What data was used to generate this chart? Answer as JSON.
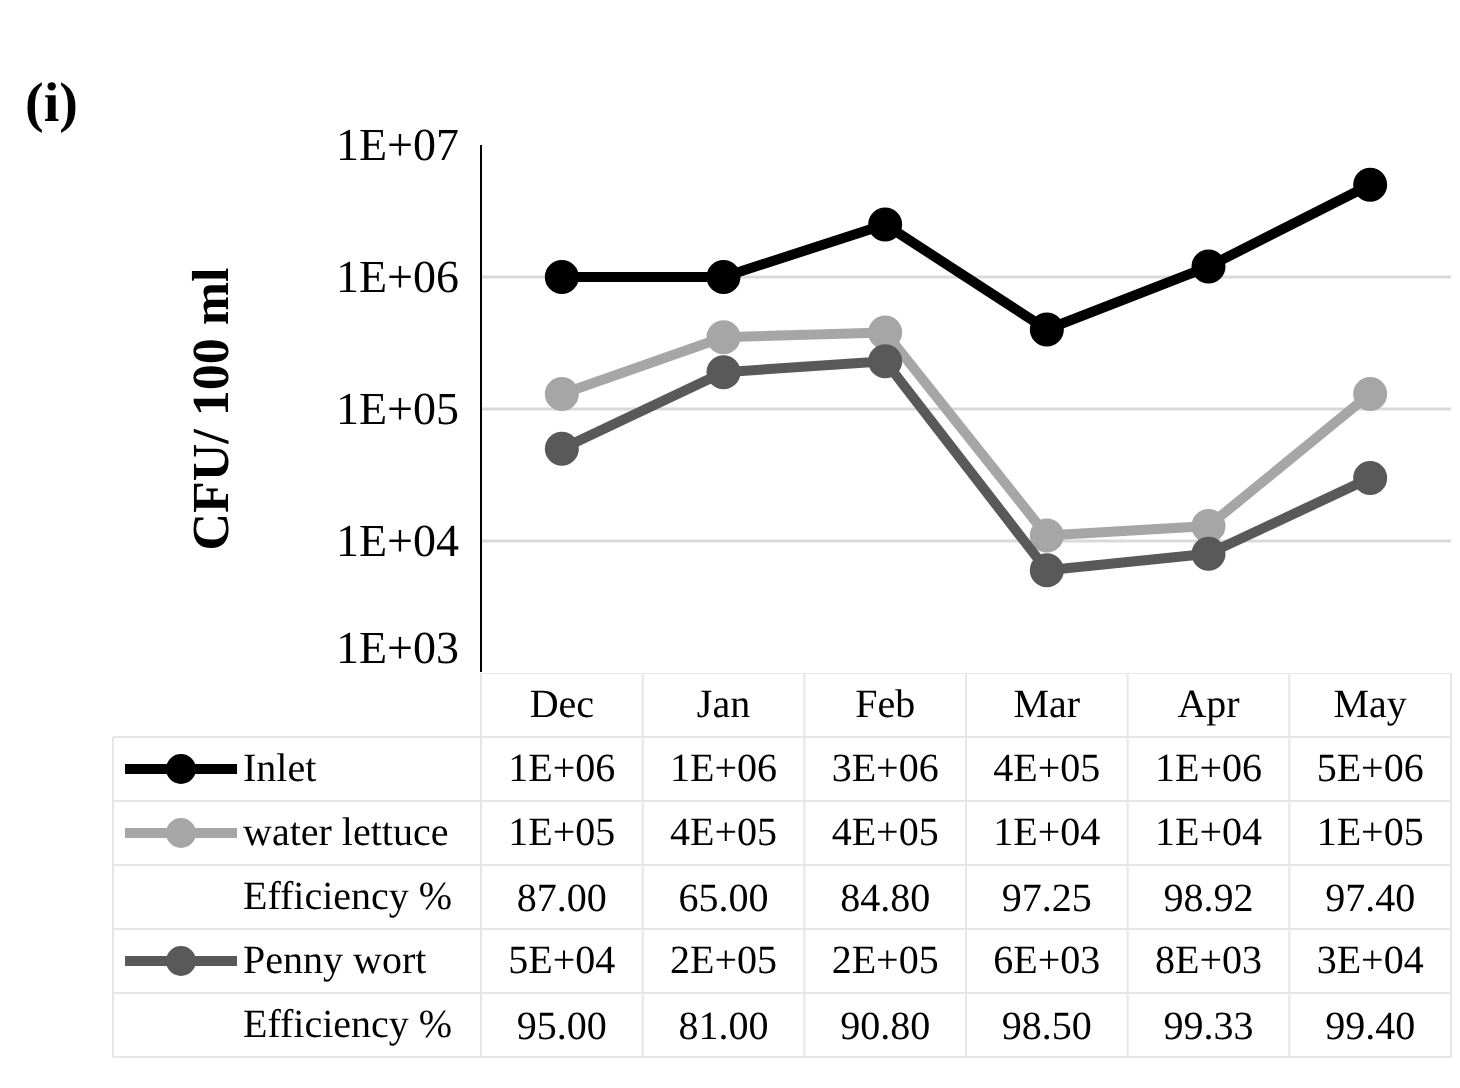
{
  "chart_data": {
    "type": "line",
    "title": "(i)",
    "ylabel": "CFU/ 100 ml",
    "categories": [
      "Dec",
      "Jan",
      "Feb",
      "Mar",
      "Apr",
      "May"
    ],
    "series": [
      {
        "name": "Inlet",
        "color": "#000000",
        "values": [
          1000000,
          1000000,
          2500000,
          400000,
          1200000,
          5000000
        ],
        "value_labels": [
          "1E+06",
          "1E+06",
          "3E+06",
          "4E+05",
          "1E+06",
          "5E+06"
        ]
      },
      {
        "name": "water lettuce",
        "color": "#a6a6a6",
        "values": [
          130000,
          350000,
          380000,
          11000,
          13000,
          130000
        ],
        "value_labels": [
          "1E+05",
          "4E+05",
          "4E+05",
          "1E+04",
          "1E+04",
          "1E+05"
        ]
      },
      {
        "name": "Penny wort",
        "color": "#595959",
        "values": [
          50000,
          190000,
          230000,
          6000,
          8000,
          30000
        ],
        "value_labels": [
          "5E+04",
          "2E+05",
          "2E+05",
          "6E+03",
          "8E+03",
          "3E+04"
        ]
      }
    ],
    "annotations": [
      "Efficiency %",
      "87.00",
      "65.00",
      "84.80",
      "97.25",
      "98.92",
      "97.40",
      "Efficiency %",
      "95.00",
      "81.00",
      "90.80",
      "98.50",
      "99.33",
      "99.40"
    ],
    "log": true,
    "ylim": [
      1000,
      10000000
    ],
    "yticks": [
      {
        "value": 1000,
        "label": "1E+03"
      },
      {
        "value": 10000,
        "label": "1E+04"
      },
      {
        "value": 100000,
        "label": "1E+05"
      },
      {
        "value": 1000000,
        "label": "1E+06"
      },
      {
        "value": 10000000,
        "label": "1E+07"
      }
    ],
    "grid": "y",
    "legend": "bottom",
    "marker": "circle",
    "line_style": "solid"
  }
}
